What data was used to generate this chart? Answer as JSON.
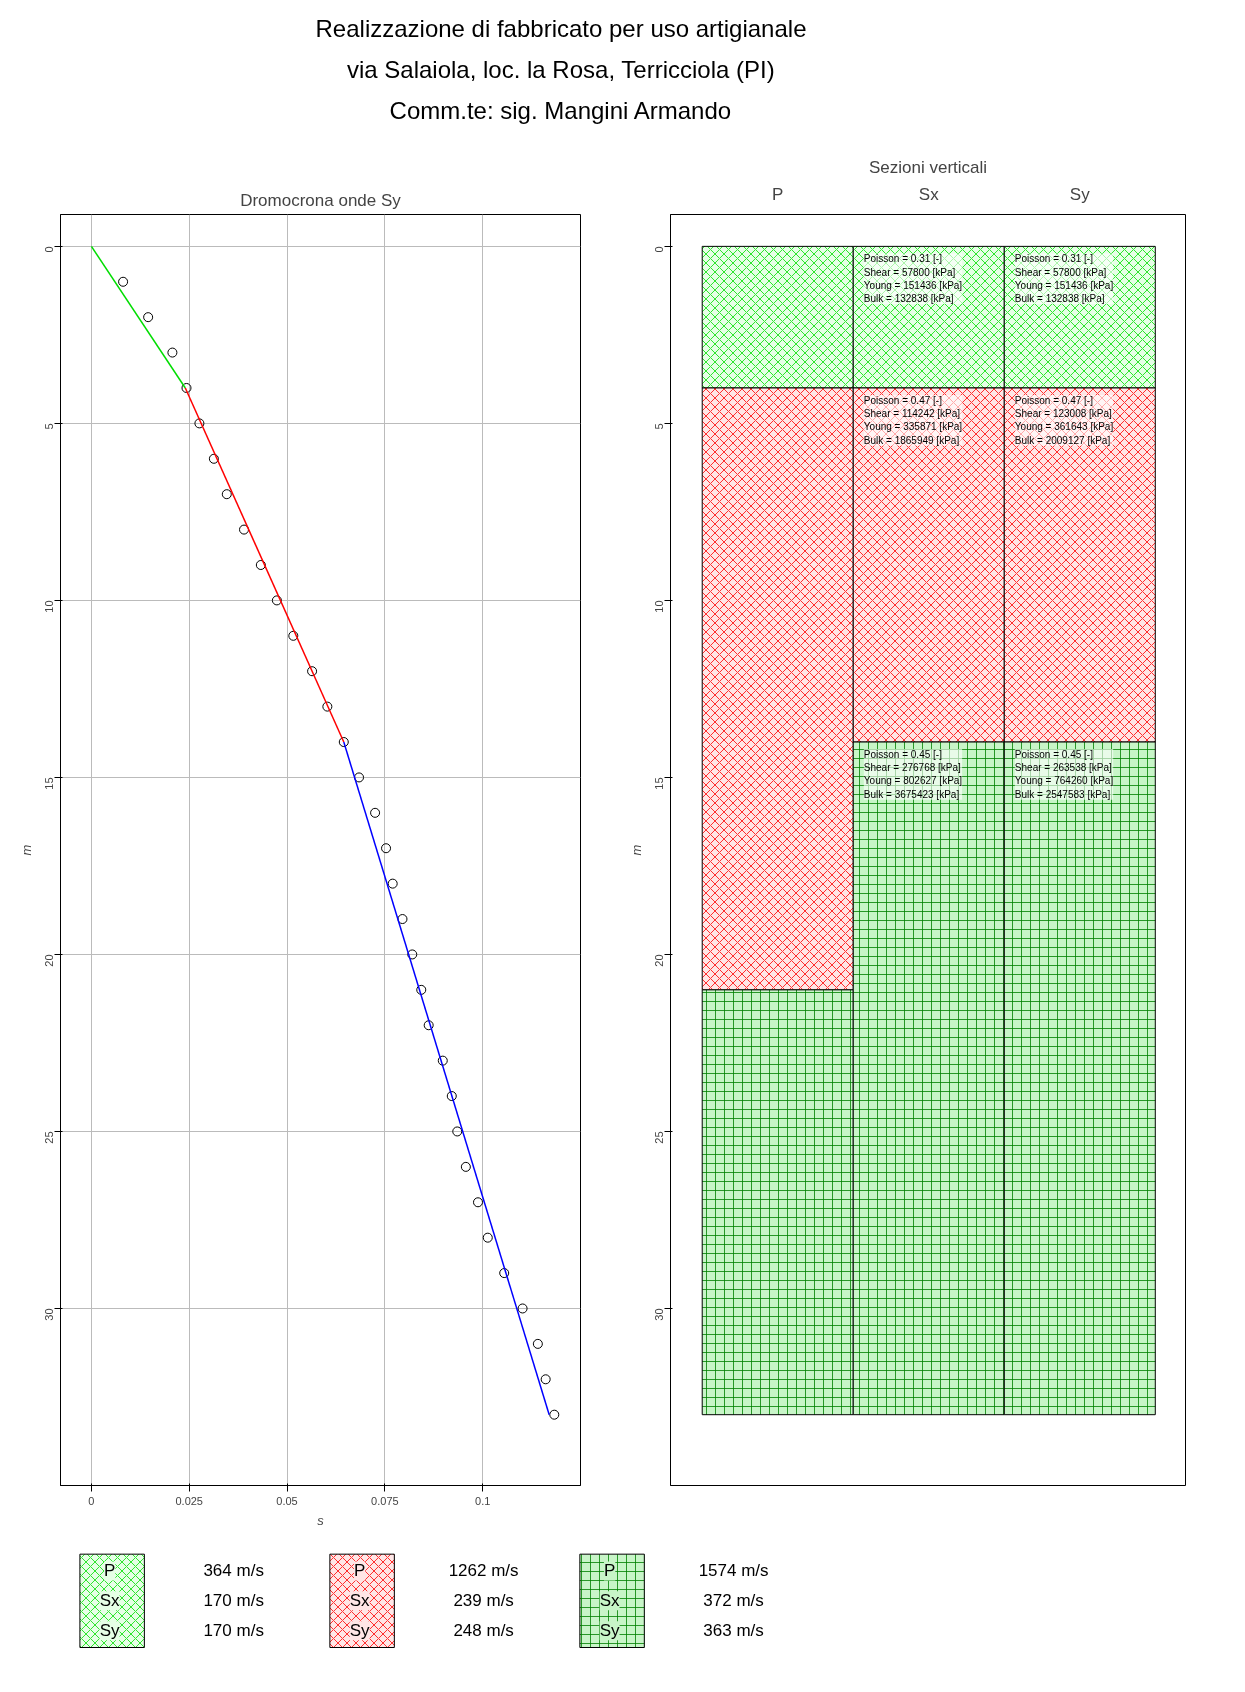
{
  "chart_data": [
    {
      "type": "scatter",
      "title": "Dromocrona onde Sy",
      "xlabel": "s",
      "ylabel": "m",
      "annotations": [
        "Realizzazione di fabbricato per uso artigianale",
        "via Salaiola, loc. la Rosa, Terricciola (PI)",
        "Comm.te: sig. Mangini Armando"
      ],
      "xlim": [
        -0.0079,
        0.125
      ],
      "xticks": [
        0,
        0.025,
        0.05,
        0.075,
        0.1
      ],
      "ylim": [
        35,
        -0.9
      ],
      "yticks": [
        0,
        5,
        10,
        15,
        20,
        25,
        30
      ],
      "grid": true,
      "series": [
        {
          "type": "scatter",
          "marker": "circle",
          "color": "#000000",
          "x": [
            0.0081,
            0.0145,
            0.0207,
            0.0243,
            0.0276,
            0.0313,
            0.0346,
            0.039,
            0.0433,
            0.0474,
            0.0516,
            0.0564,
            0.0603,
            0.0645,
            0.0684,
            0.0725,
            0.0753,
            0.077,
            0.0795,
            0.082,
            0.0843,
            0.0862,
            0.0898,
            0.0921,
            0.0935,
            0.0957,
            0.0988,
            0.1013,
            0.1055,
            0.1102,
            0.1141,
            0.1161,
            0.1183
          ],
          "values": [
            1,
            2,
            3,
            4,
            5,
            6,
            7,
            8,
            9,
            10,
            11,
            12,
            13,
            14,
            15,
            16,
            17,
            18,
            19,
            20,
            21,
            22,
            23,
            24,
            25,
            26,
            27,
            28,
            29,
            30,
            31,
            32,
            33
          ]
        },
        {
          "type": "line",
          "color": "#00dd00",
          "x": [
            0,
            0.024
          ],
          "values": [
            0,
            4
          ]
        },
        {
          "type": "line",
          "color": "#ff0000",
          "x": [
            0.024,
            0.0645
          ],
          "values": [
            4,
            14
          ]
        },
        {
          "type": "line",
          "color": "#0000ff",
          "x": [
            0.0645,
            0.117
          ],
          "values": [
            14,
            33
          ]
        }
      ]
    },
    {
      "type": "bar",
      "stacked": true,
      "title": "Sezioni verticali",
      "ylabel": "m",
      "categories": [
        "P",
        "Sx",
        "Sy"
      ],
      "ylim": [
        35,
        -0.9
      ],
      "yticks": [
        0,
        5,
        10,
        15,
        20,
        25,
        30
      ],
      "series": [
        {
          "color": "#e6ffe6",
          "values": [
            4,
            4,
            4
          ]
        },
        {
          "color": "#ffe6e6",
          "values": [
            17,
            10,
            10
          ]
        },
        {
          "color": "#c8f5c8",
          "values": [
            12,
            19,
            19
          ]
        }
      ],
      "annotations": [
        {
          "text": "Poisson = 0.31 [-]\nShear = 57800 [kPa]\nYoung = 151436 [kPa]\nBulk = 132838 [kPa]",
          "x": "Sx",
          "y": 0
        },
        {
          "text": "Poisson = 0.31 [-]\nShear = 57800 [kPa]\nYoung = 151436 [kPa]\nBulk = 132838 [kPa]",
          "x": "Sy",
          "y": 0
        },
        {
          "text": "Poisson = 0.47 [-]\nShear = 114242 [kPa]\nYoung = 335871 [kPa]\nBulk = 1865949 [kPa]",
          "x": "Sx",
          "y": 4
        },
        {
          "text": "Poisson = 0.47 [-]\nShear = 123008 [kPa]\nYoung = 361643 [kPa]\nBulk = 2009127 [kPa]",
          "x": "Sy",
          "y": 4
        },
        {
          "text": "Poisson = 0.45 [-]\nShear = 276768 [kPa]\nYoung = 802627 [kPa]\nBulk = 3675423 [kPa]",
          "x": "Sx",
          "y": 14
        },
        {
          "text": "Poisson = 0.45 [-]\nShear = 263538 [kPa]\nYoung = 764260 [kPa]\nBulk = 2547583 [kPa]",
          "x": "Sy",
          "y": 14
        },
        "364 m/s",
        "170 m/s",
        "170 m/s",
        "1262 m/s",
        "239 m/s",
        "248 m/s",
        "1574 m/s",
        "372 m/s",
        "363 m/s"
      ]
    }
  ]
}
